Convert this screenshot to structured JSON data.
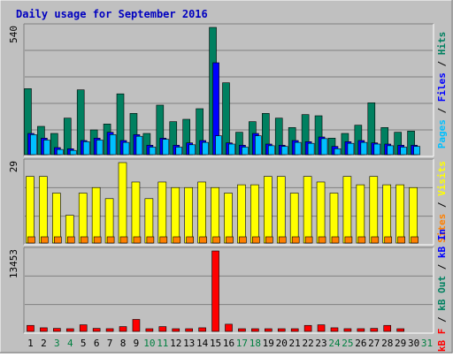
{
  "chart_data": {
    "type": "bar",
    "title": "Daily usage for September 2016",
    "categories": [
      "1",
      "2",
      "3",
      "4",
      "5",
      "6",
      "7",
      "8",
      "9",
      "10",
      "11",
      "12",
      "13",
      "14",
      "15",
      "16",
      "17",
      "18",
      "19",
      "20",
      "21",
      "22",
      "23",
      "24",
      "25",
      "26",
      "27",
      "28",
      "29",
      "30",
      "31"
    ],
    "weekend_days": [
      "3",
      "4",
      "10",
      "11",
      "17",
      "18",
      "24",
      "25",
      "31"
    ],
    "colors": {
      "title": "#0000c0",
      "background": "#c0c0c0",
      "hits": "#008060",
      "files": "#0000ff",
      "pages": "#00c0ff",
      "visits": "#ffff00",
      "sites": "#ff8000",
      "kb_in": "#0000ff",
      "kb_out": "#008060",
      "kb_f": "#ff0000",
      "weekend_label": "#008040",
      "weekday_label": "#000000"
    },
    "panels": [
      {
        "id": "hits",
        "ymax_label": "540",
        "ylim": [
          0,
          540
        ],
        "legend": [
          {
            "text": "Pages",
            "color": "#00c0ff"
          },
          {
            "text": " / ",
            "color": "#000000"
          },
          {
            "text": "Files",
            "color": "#0000ff"
          },
          {
            "text": " / ",
            "color": "#000000"
          },
          {
            "text": "Hits",
            "color": "#008060"
          }
        ],
        "series": [
          {
            "name": "Hits",
            "color": "#008060",
            "values": [
              280,
              120,
              90,
              155,
              275,
              105,
              130,
              258,
              175,
              90,
              210,
              140,
              150,
              195,
              540,
              305,
              95,
              140,
              175,
              155,
              115,
              170,
              165,
              70,
              90,
              125,
              220,
              115,
              95,
              100,
              0
            ]
          },
          {
            "name": "Files",
            "color": "#0000ff",
            "values": [
              90,
              70,
              30,
              25,
              60,
              70,
              95,
              60,
              85,
              40,
              70,
              40,
              50,
              60,
              390,
              50,
              40,
              90,
              45,
              40,
              60,
              55,
              75,
              35,
              55,
              60,
              50,
              45,
              40,
              40,
              0
            ]
          },
          {
            "name": "Pages",
            "color": "#00c0ff",
            "values": [
              85,
              62,
              22,
              18,
              55,
              62,
              85,
              52,
              78,
              32,
              65,
              32,
              42,
              52,
              80,
              45,
              32,
              80,
              38,
              35,
              52,
              48,
              68,
              25,
              48,
              52,
              45,
              38,
              32,
              35,
              0
            ]
          }
        ]
      },
      {
        "id": "visits",
        "ymax_label": "29",
        "ylim": [
          0,
          29
        ],
        "legend": [
          {
            "text": "Sites",
            "color": "#ff8000"
          },
          {
            "text": " / ",
            "color": "#000000"
          },
          {
            "text": "Visits",
            "color": "#ffff00"
          }
        ],
        "series": [
          {
            "name": "Visits",
            "color": "#ffff00",
            "values": [
              24,
              24,
              18,
              10,
              18,
              20,
              16,
              29,
              22,
              16,
              22,
              20,
              20,
              22,
              20,
              18,
              21,
              21,
              24,
              24,
              18,
              24,
              22,
              18,
              24,
              21,
              24,
              21,
              21,
              20,
              0
            ]
          },
          {
            "name": "Sites",
            "color": "#ff8000",
            "values": [
              2,
              2,
              2,
              2,
              2,
              2,
              2,
              2,
              2,
              2,
              2,
              2,
              2,
              2,
              2,
              2,
              2,
              2,
              2,
              2,
              2,
              2,
              2,
              2,
              2,
              2,
              2,
              2,
              2,
              2,
              0
            ]
          }
        ]
      },
      {
        "id": "kbytes",
        "ymax_label": "13453",
        "ylim": [
          0,
          13453
        ],
        "legend": [
          {
            "text": "kB F",
            "color": "#ff0000"
          },
          {
            "text": " / ",
            "color": "#000000"
          },
          {
            "text": "kB Out",
            "color": "#008060"
          },
          {
            "text": " / ",
            "color": "#000000"
          },
          {
            "text": "kB In",
            "color": "#0000ff"
          }
        ],
        "series": [
          {
            "name": "kB F",
            "color": "#ff0000",
            "values": [
              1000,
              600,
              500,
              300,
              1100,
              500,
              450,
              800,
              2000,
              400,
              800,
              200,
              400,
              600,
              13453,
              1200,
              300,
              300,
              300,
              200,
              400,
              1000,
              1100,
              600,
              450,
              450,
              500,
              1000,
              300,
              0,
              0
            ]
          }
        ]
      }
    ]
  }
}
